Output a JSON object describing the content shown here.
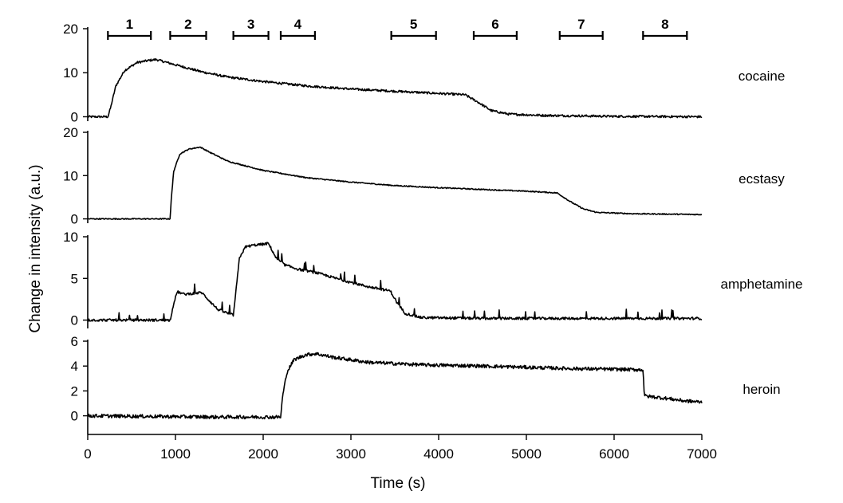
{
  "chart_data": {
    "type": "line",
    "xlabel": "Time (s)",
    "ylabel": "Change in intensity (a.u.)",
    "xlim": [
      0,
      7000
    ],
    "x_ticks": [
      "0",
      "1000",
      "2000",
      "3000",
      "4000",
      "5000",
      "6000",
      "7000"
    ],
    "segments": [
      {
        "label": "1",
        "start": 230,
        "end": 720
      },
      {
        "label": "2",
        "start": 940,
        "end": 1350
      },
      {
        "label": "3",
        "start": 1660,
        "end": 2060
      },
      {
        "label": "4",
        "start": 2200,
        "end": 2590
      },
      {
        "label": "5",
        "start": 3460,
        "end": 3970
      },
      {
        "label": "6",
        "start": 4400,
        "end": 4890
      },
      {
        "label": "7",
        "start": 5380,
        "end": 5870
      },
      {
        "label": "8",
        "start": 6330,
        "end": 6830
      }
    ],
    "panels": [
      {
        "label": "cocaine",
        "ylim": [
          -1,
          20
        ],
        "yticks": [
          "0",
          "10",
          "20"
        ],
        "noise": 0.25,
        "points": [
          [
            0,
            0
          ],
          [
            230,
            0
          ],
          [
            260,
            2
          ],
          [
            320,
            7
          ],
          [
            420,
            10.5
          ],
          [
            560,
            12.3
          ],
          [
            700,
            12.8
          ],
          [
            780,
            13
          ],
          [
            1000,
            11.8
          ],
          [
            1300,
            10.2
          ],
          [
            1600,
            9.0
          ],
          [
            2000,
            8.0
          ],
          [
            2500,
            7.0
          ],
          [
            3000,
            6.3
          ],
          [
            3500,
            5.8
          ],
          [
            4000,
            5.3
          ],
          [
            4300,
            5.0
          ],
          [
            4450,
            3.3
          ],
          [
            4600,
            1.4
          ],
          [
            4800,
            0.6
          ],
          [
            5200,
            0.3
          ],
          [
            6000,
            0.1
          ],
          [
            7000,
            0
          ]
        ]
      },
      {
        "label": "ecstasy",
        "ylim": [
          -1,
          20
        ],
        "yticks": [
          "0",
          "10",
          "20"
        ],
        "noise": 0.12,
        "points": [
          [
            0,
            0
          ],
          [
            940,
            0
          ],
          [
            950,
            4
          ],
          [
            980,
            11
          ],
          [
            1050,
            15
          ],
          [
            1150,
            16.1
          ],
          [
            1280,
            16.6
          ],
          [
            1400,
            15.3
          ],
          [
            1600,
            13.3
          ],
          [
            2000,
            11.2
          ],
          [
            2500,
            9.5
          ],
          [
            3000,
            8.5
          ],
          [
            3500,
            7.7
          ],
          [
            4000,
            7.2
          ],
          [
            4500,
            6.8
          ],
          [
            5000,
            6.4
          ],
          [
            5350,
            6.0
          ],
          [
            5500,
            4.0
          ],
          [
            5650,
            2.3
          ],
          [
            5800,
            1.5
          ],
          [
            6200,
            1.2
          ],
          [
            7000,
            1.0
          ]
        ]
      },
      {
        "label": "amphetamine",
        "ylim": [
          -1,
          10
        ],
        "yticks": [
          "0",
          "5",
          "10"
        ],
        "noise": 0.15,
        "spikes": true,
        "points": [
          [
            0,
            0
          ],
          [
            940,
            0
          ],
          [
            980,
            2
          ],
          [
            1020,
            3.4
          ],
          [
            1100,
            3.1
          ],
          [
            1200,
            3.2
          ],
          [
            1300,
            3.3
          ],
          [
            1380,
            2.4
          ],
          [
            1480,
            1.3
          ],
          [
            1600,
            0.8
          ],
          [
            1660,
            0.6
          ],
          [
            1690,
            3.5
          ],
          [
            1730,
            7.5
          ],
          [
            1800,
            8.8
          ],
          [
            1900,
            9.0
          ],
          [
            2000,
            9.1
          ],
          [
            2060,
            9.2
          ],
          [
            2150,
            7.4
          ],
          [
            2250,
            6.6
          ],
          [
            2400,
            6.1
          ],
          [
            2600,
            5.7
          ],
          [
            2900,
            4.8
          ],
          [
            3200,
            4.0
          ],
          [
            3450,
            3.5
          ],
          [
            3530,
            2.0
          ],
          [
            3620,
            0.8
          ],
          [
            3800,
            0.3
          ],
          [
            4500,
            0.2
          ],
          [
            7000,
            0.2
          ]
        ]
      },
      {
        "label": "heroin",
        "ylim": [
          -1.5,
          6
        ],
        "yticks": [
          "0",
          "2",
          "4",
          "6"
        ],
        "noise": 0.14,
        "points": [
          [
            0,
            0
          ],
          [
            1500,
            -0.1
          ],
          [
            2200,
            -0.1
          ],
          [
            2220,
            1.5
          ],
          [
            2270,
            3.5
          ],
          [
            2350,
            4.5
          ],
          [
            2480,
            4.9
          ],
          [
            2600,
            5.0
          ],
          [
            2800,
            4.7
          ],
          [
            3200,
            4.3
          ],
          [
            3800,
            4.1
          ],
          [
            4500,
            4.0
          ],
          [
            5500,
            3.8
          ],
          [
            6330,
            3.7
          ],
          [
            6345,
            1.6
          ],
          [
            6600,
            1.4
          ],
          [
            6800,
            1.2
          ],
          [
            7000,
            1.1
          ]
        ]
      }
    ]
  }
}
